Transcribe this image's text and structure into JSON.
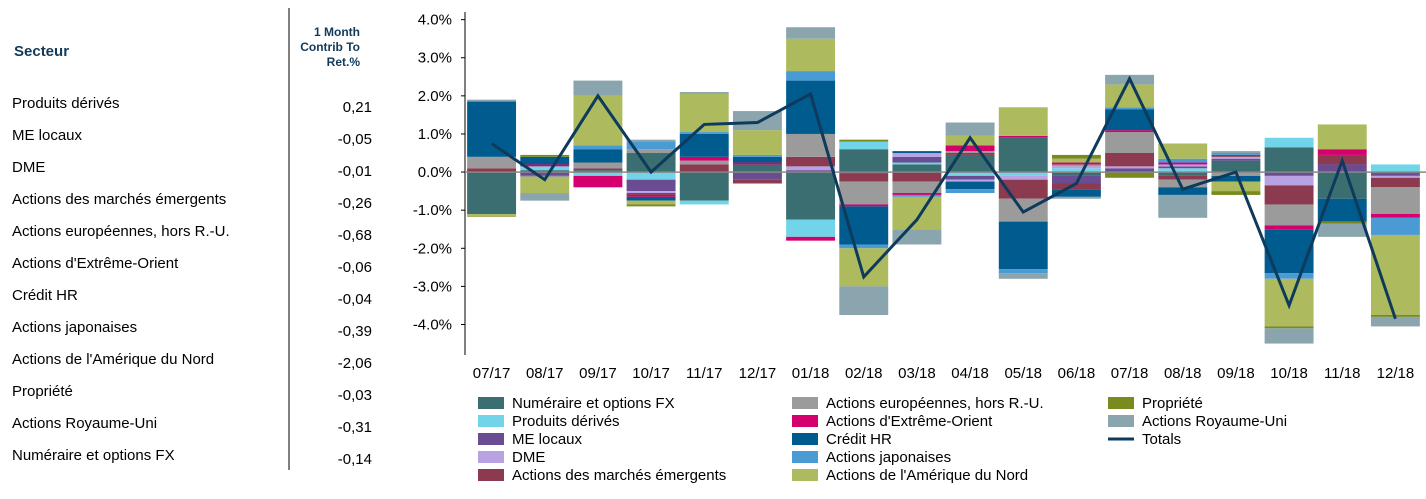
{
  "table": {
    "header": {
      "sector": "Secteur",
      "contrib": "1 Month Contrib To Ret.%"
    },
    "rows": [
      [
        "Produits dérivés",
        "0,21"
      ],
      [
        "ME locaux",
        "-0,05"
      ],
      [
        "DME",
        "-0,01"
      ],
      [
        "Actions des marchés émergents",
        "-0,26"
      ],
      [
        "Actions européennes, hors R.-U.",
        "-0,68"
      ],
      [
        "Actions d'Extrême-Orient",
        "-0,06"
      ],
      [
        "Crédit HR",
        "-0,04"
      ],
      [
        "Actions japonaises",
        "-0,39"
      ],
      [
        "Actions de l'Amérique du Nord",
        "-2,06"
      ],
      [
        "Propriété",
        "-0,03"
      ],
      [
        "Actions Royaume-Uni",
        "-0,31"
      ],
      [
        "Numéraire et options FX",
        "-0,14"
      ]
    ]
  },
  "chart_data": {
    "type": "bar",
    "stacked": true,
    "categories": [
      "07/17",
      "08/17",
      "09/17",
      "10/17",
      "11/17",
      "12/17",
      "01/18",
      "02/18",
      "03/18",
      "04/18",
      "05/18",
      "06/18",
      "07/18",
      "08/18",
      "09/18",
      "10/18",
      "11/18",
      "12/18"
    ],
    "ylim": [
      -4.8,
      4.2
    ],
    "yticks": [
      {
        "value": 4,
        "label": "4.0%"
      },
      {
        "value": 3,
        "label": "3.0%"
      },
      {
        "value": 2,
        "label": "2.0%"
      },
      {
        "value": 1,
        "label": "1.0%"
      },
      {
        "value": 0,
        "label": "0.0%"
      },
      {
        "value": -1,
        "label": "-1.0%"
      },
      {
        "value": -2,
        "label": "-2.0%"
      },
      {
        "value": -3,
        "label": "-3.0%"
      },
      {
        "value": -4,
        "label": "-4.0%"
      }
    ],
    "series": [
      {
        "name": "Numéraire et options FX",
        "color": "#3b6e70",
        "values": [
          -1.1,
          0.05,
          0.05,
          0.5,
          -0.75,
          0.2,
          -1.25,
          0.6,
          0.2,
          0.45,
          0.9,
          -0.1,
          0,
          -0.1,
          0.3,
          0.65,
          -0.7,
          -0.05
        ]
      },
      {
        "name": "Produits dérivés",
        "color": "#72d4e8",
        "values": [
          0,
          0.1,
          -0.1,
          -0.2,
          -0.1,
          0,
          -0.45,
          0.2,
          0.05,
          -0.1,
          -0.1,
          0.1,
          0,
          0.1,
          0,
          0.25,
          0,
          0.2
        ]
      },
      {
        "name": "ME locaux",
        "color": "#6a4c93",
        "values": [
          0,
          -0.1,
          0,
          -0.3,
          0,
          -0.2,
          0.05,
          -0.05,
          0.15,
          -0.1,
          0,
          -0.2,
          0.1,
          0.05,
          0.05,
          -0.1,
          0.2,
          -0.05
        ]
      },
      {
        "name": "DME",
        "color": "#b9a2e2",
        "values": [
          0,
          0,
          0,
          -0.05,
          0,
          0,
          0.1,
          0,
          0.1,
          -0.05,
          -0.1,
          0.05,
          0.05,
          0.05,
          0.05,
          -0.25,
          0,
          -0.05
        ]
      },
      {
        "name": "Actions des marchés émergents",
        "color": "#8b3a50",
        "values": [
          0.1,
          0,
          0.05,
          -0.05,
          0.2,
          -0.1,
          0.25,
          -0.2,
          -0.25,
          0.05,
          -0.5,
          -0.15,
          0.35,
          -0.1,
          0.05,
          -0.5,
          0.25,
          -0.25
        ]
      },
      {
        "name": "Actions européennes, hors R.-U.",
        "color": "#9b9b9b",
        "values": [
          0.3,
          -0.05,
          0.15,
          0.1,
          0.1,
          0,
          0.6,
          -0.6,
          -0.3,
          0.05,
          -0.6,
          0.05,
          0.55,
          -0.2,
          -0.1,
          -0.55,
          0,
          -0.7
        ]
      },
      {
        "name": "Actions d'Extrême-Orient",
        "color": "#d4006e",
        "values": [
          0,
          0.05,
          -0.3,
          -0.05,
          0.1,
          0.05,
          -0.1,
          -0.05,
          -0.05,
          0.15,
          0.05,
          0.05,
          0.05,
          0.05,
          0,
          -0.1,
          0.15,
          -0.1
        ]
      },
      {
        "name": "Crédit HR",
        "color": "#005b8f",
        "values": [
          1.45,
          0.2,
          0.35,
          -0.1,
          0.6,
          0.15,
          1.4,
          -1.0,
          0.05,
          -0.2,
          -1.25,
          -0.2,
          0.55,
          -0.2,
          -0.15,
          -1.15,
          -0.6,
          0
        ]
      },
      {
        "name": "Actions japonaises",
        "color": "#4a9ad4",
        "values": [
          0,
          0,
          0.1,
          0.2,
          0.05,
          0.05,
          0.25,
          -0.1,
          -0.05,
          -0.1,
          -0.1,
          0,
          0.05,
          0.1,
          0.05,
          -0.15,
          0,
          -0.45
        ]
      },
      {
        "name": "Actions de l'Amérique du Nord",
        "color": "#adbb5e",
        "values": [
          -0.05,
          -0.4,
          1.3,
          -0.1,
          1.0,
          0.65,
          0.85,
          -1.0,
          -0.85,
          0.25,
          0.75,
          0.1,
          0.6,
          0.4,
          -0.25,
          -1.25,
          0.65,
          -2.1
        ]
      },
      {
        "name": "Propriété",
        "color": "#7a8a1f",
        "values": [
          -0.02,
          0.05,
          0,
          -0.05,
          0,
          0,
          0,
          0.05,
          0,
          0,
          0,
          0.1,
          -0.15,
          0,
          -0.1,
          -0.05,
          -0.05,
          -0.05
        ]
      },
      {
        "name": "Actions Royaume-Uni",
        "color": "#8aa5ad",
        "values": [
          0.05,
          -0.2,
          0.4,
          0.05,
          0.05,
          0.5,
          0.3,
          -0.75,
          -0.4,
          0.35,
          -0.15,
          -0.05,
          0.25,
          -0.6,
          0.05,
          -0.4,
          -0.35,
          -0.25
        ]
      }
    ],
    "totals": {
      "name": "Totals",
      "color": "#0e3a5c",
      "values": [
        0.75,
        -0.2,
        2.0,
        0.0,
        1.25,
        1.3,
        2.05,
        -2.75,
        -1.25,
        0.9,
        -1.05,
        -0.3,
        2.45,
        -0.45,
        0.0,
        -3.5,
        0.3,
        -3.85
      ]
    }
  }
}
